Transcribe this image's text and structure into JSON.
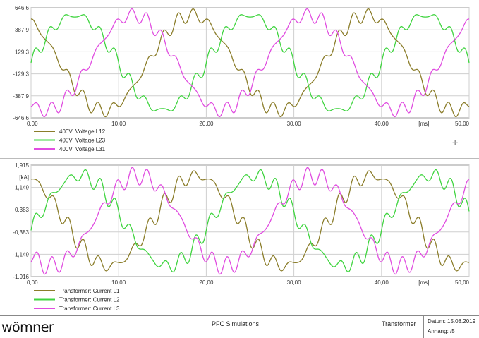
{
  "chart_data": [
    {
      "type": "line",
      "title": "",
      "xlabel": "[ms]",
      "ylabel": "",
      "xlim": [
        0,
        50
      ],
      "ylim": [
        -646.6,
        646.6
      ],
      "x_ticks": [
        "0,00",
        "10,00",
        "20,00",
        "30,00",
        "40,00",
        "50,00"
      ],
      "y_ticks": [
        "646,6",
        "387,9",
        "129,3",
        "-129,3",
        "-387,9",
        "-646,6"
      ],
      "grid": true,
      "legend_position": "bottom-left",
      "frequency_hz": 50,
      "amplitude": 560,
      "harmonic_amplitude": 55,
      "series": [
        {
          "name": "400V: Voltage L12",
          "color": "#8b7d2a",
          "phase_deg": 120
        },
        {
          "name": "400V: Voltage L23",
          "color": "#3fd43f",
          "phase_deg": 0
        },
        {
          "name": "400V: Voltage L31",
          "color": "#e04ce0",
          "phase_deg": 240
        }
      ]
    },
    {
      "type": "line",
      "title": "",
      "xlabel": "[ms]",
      "ylabel": "[kA]",
      "xlim": [
        0,
        50
      ],
      "ylim": [
        -1.916,
        1.915
      ],
      "x_ticks": [
        "0,00",
        "10,00",
        "20,00",
        "30,00",
        "40,00",
        "50,00"
      ],
      "y_ticks": [
        "1,915",
        "1,149",
        "0,383",
        "-0,383",
        "-1,149",
        "-1,916"
      ],
      "grid": true,
      "legend_position": "bottom-left",
      "frequency_hz": 50,
      "amplitude": 1.55,
      "harmonic_amplitude": 0.2,
      "series": [
        {
          "name": "Transformer: Current L1",
          "color": "#8b7d2a",
          "phase_deg": 110
        },
        {
          "name": "Transformer: Current L2",
          "color": "#3fd43f",
          "phase_deg": -10
        },
        {
          "name": "Transformer: Current L3",
          "color": "#e04ce0",
          "phase_deg": 230
        }
      ]
    }
  ],
  "footer": {
    "logo": "wömner",
    "title": "PFC Simulations",
    "subtitle": "Transformer",
    "datum": "Datum: 15.08.2019",
    "anhang": "Anhang:  /5"
  }
}
